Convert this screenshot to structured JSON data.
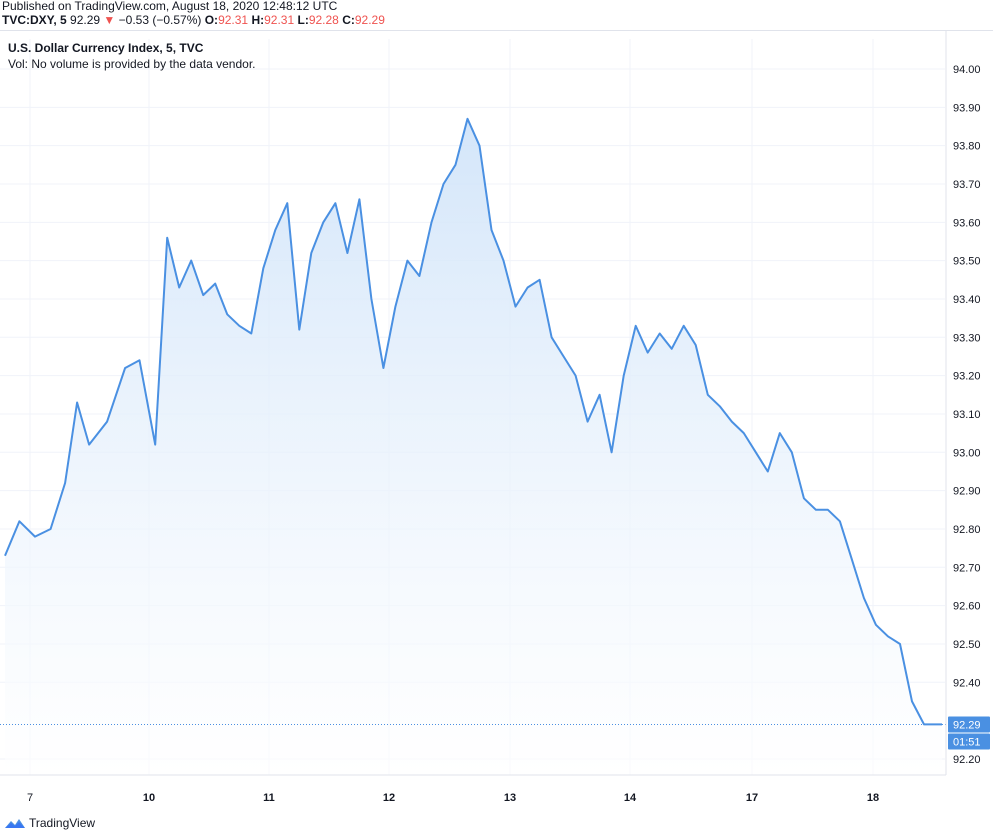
{
  "header": {
    "published": "Published on TradingView.com, August 18, 2020 12:48:12 UTC",
    "symbol": "TVC:DXY, 5",
    "price": "92.29",
    "change_arrow": "▼",
    "change": "−0.53 (−0.57%)",
    "o_label": "O:",
    "o_value": "92.31",
    "h_label": "H:",
    "h_value": "92.31",
    "l_label": "L:",
    "l_value": "92.28",
    "c_label": "C:",
    "c_value": "92.29"
  },
  "legend": {
    "title": "U.S. Dollar Currency Index, 5, TVC",
    "volume_note": "Vol: No volume is provided by the data vendor."
  },
  "footer": {
    "brand": "TradingView",
    "logo_icon": "tradingview-logo-icon"
  },
  "colors": {
    "line": "#4a90e2",
    "fill_top": "#cfe3f9",
    "fill_bottom": "#ffffff",
    "price_badge": "#4a90e2",
    "negative": "#ef5350",
    "grid": "#f0f3fa"
  },
  "chart_data": {
    "type": "area",
    "title": "U.S. Dollar Currency Index, 5, TVC",
    "ylim": [
      92.15,
      94.07
    ],
    "yticks": [
      "94.00",
      "93.90",
      "93.80",
      "93.70",
      "93.60",
      "93.50",
      "93.40",
      "93.30",
      "93.20",
      "93.10",
      "93.00",
      "92.90",
      "92.80",
      "92.70",
      "92.60",
      "92.50",
      "92.40",
      "92.20"
    ],
    "x_tick_labels": [
      "7",
      "10",
      "11",
      "12",
      "13",
      "14",
      "17",
      "18"
    ],
    "grid": true,
    "last_price": "92.29",
    "countdown": "01:51",
    "series": [
      {
        "x": [
          0,
          0.12,
          0.25,
          0.38,
          0.5,
          0.6,
          0.7,
          0.85,
          1.0,
          1.12,
          1.25,
          1.35,
          1.45,
          1.55,
          1.65,
          1.75,
          1.85,
          1.95,
          2.05,
          2.15,
          2.25,
          2.35,
          2.45,
          2.55,
          2.65,
          2.75,
          2.85,
          2.95,
          3.05,
          3.15,
          3.25,
          3.35,
          3.45,
          3.55,
          3.65,
          3.75,
          3.85,
          3.95,
          4.05,
          4.15,
          4.25,
          4.35,
          4.45,
          4.55,
          4.65,
          4.75,
          4.85,
          4.95,
          5.05,
          5.15,
          5.25,
          5.35,
          5.45,
          5.55,
          5.65,
          5.75,
          5.85,
          5.95,
          6.05,
          6.15,
          6.25,
          6.35,
          6.45,
          6.55,
          6.65,
          6.75,
          6.85,
          6.95,
          7.05,
          7.15,
          7.25,
          7.35,
          7.45,
          7.55,
          7.65,
          7.75,
          7.8
        ],
        "values": [
          92.73,
          92.82,
          92.78,
          92.8,
          92.92,
          93.13,
          93.02,
          93.08,
          93.22,
          93.24,
          93.02,
          93.56,
          93.43,
          93.5,
          93.41,
          93.44,
          93.36,
          93.33,
          93.31,
          93.48,
          93.58,
          93.65,
          93.32,
          93.52,
          93.6,
          93.65,
          93.52,
          93.66,
          93.4,
          93.22,
          93.38,
          93.5,
          93.46,
          93.6,
          93.7,
          93.75,
          93.87,
          93.8,
          93.58,
          93.5,
          93.38,
          93.43,
          93.45,
          93.3,
          93.25,
          93.2,
          93.08,
          93.15,
          93.0,
          93.2,
          93.33,
          93.26,
          93.31,
          93.27,
          93.33,
          93.28,
          93.15,
          93.12,
          93.08,
          93.05,
          93.0,
          92.95,
          93.05,
          93.0,
          92.88,
          92.85,
          92.85,
          92.82,
          92.72,
          92.62,
          92.55,
          92.52,
          92.5,
          92.35,
          92.29,
          92.29,
          92.29
        ]
      }
    ]
  }
}
